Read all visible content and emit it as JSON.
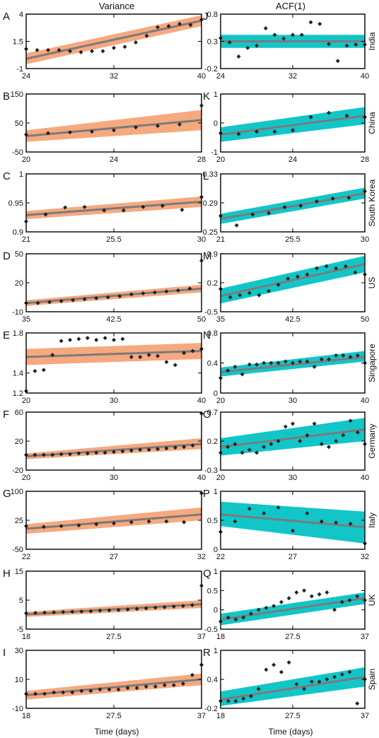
{
  "columns": {
    "left": "Variance",
    "right": "ACF(1)"
  },
  "xlabel": "Time (days)",
  "colors": {
    "variance_band": "#f6a97f",
    "acf_band": "#12c6c8",
    "fit_line": "#7b7b7b",
    "point": "#222222"
  },
  "chart_data": [
    {
      "panel": "A",
      "metric": "Variance",
      "country": "India",
      "type": "scatter",
      "xlim": [
        24,
        40
      ],
      "ylim": [
        -1,
        4
      ],
      "xticks": [
        "24",
        "32",
        "40"
      ],
      "yticks": [
        "-1",
        "1.5",
        "4"
      ],
      "x": [
        24,
        25,
        26,
        27,
        28,
        29,
        30,
        31,
        32,
        33,
        34,
        35,
        36,
        37,
        38,
        39,
        40
      ],
      "y": [
        0.8,
        0.7,
        0.7,
        0.7,
        0.6,
        0.5,
        0.6,
        0.6,
        0.9,
        1.0,
        1.4,
        2.0,
        2.8,
        2.9,
        3.1,
        3.0,
        3.5
      ],
      "fit": [
        [
          24,
          -0.1
        ],
        [
          40,
          3.4
        ]
      ],
      "band": [
        [
          24,
          -0.6,
          0.4
        ],
        [
          40,
          2.9,
          3.9
        ]
      ]
    },
    {
      "panel": "B",
      "metric": "Variance",
      "country": "China",
      "type": "scatter",
      "xlim": [
        20,
        28
      ],
      "ylim": [
        -50,
        150
      ],
      "xticks": [
        "20",
        "24",
        "28"
      ],
      "yticks": [
        "-50",
        "50",
        "150"
      ],
      "x": [
        20,
        21,
        22,
        23,
        24,
        25,
        26,
        27,
        28
      ],
      "y": [
        10,
        15,
        18,
        20,
        25,
        35,
        40,
        45,
        110
      ],
      "fit": [
        [
          20,
          5
        ],
        [
          28,
          60
        ]
      ],
      "band": [
        [
          20,
          -15,
          25
        ],
        [
          28,
          25,
          95
        ]
      ]
    },
    {
      "panel": "C",
      "metric": "Variance",
      "country": "South Korea",
      "type": "scatter",
      "xlim": [
        21,
        30
      ],
      "ylim": [
        0.9,
        1
      ],
      "xticks": [
        "21",
        "25.5",
        "30"
      ],
      "yticks": [
        "0.9",
        "0.95",
        "1"
      ],
      "x": [
        21,
        22,
        23,
        24,
        25,
        26,
        27,
        28,
        29,
        30
      ],
      "y": [
        0.918,
        0.93,
        0.942,
        0.943,
        0.937,
        0.937,
        0.943,
        0.945,
        0.938,
        0.96
      ],
      "fit": [
        [
          21,
          0.929
        ],
        [
          30,
          0.952
        ]
      ],
      "band": [
        [
          21,
          0.922,
          0.936
        ],
        [
          30,
          0.943,
          0.961
        ]
      ]
    },
    {
      "panel": "D",
      "metric": "Variance",
      "country": "US",
      "type": "scatter",
      "xlim": [
        35,
        50
      ],
      "ylim": [
        -10,
        50
      ],
      "xticks": [
        "35",
        "42.5",
        "50"
      ],
      "yticks": [
        "-10",
        "20",
        "50"
      ],
      "x": [
        35,
        36,
        37,
        38,
        39,
        40,
        41,
        42,
        43,
        44,
        45,
        46,
        47,
        48,
        49,
        50
      ],
      "y": [
        -1,
        -1,
        0,
        1,
        2,
        3,
        4,
        5,
        6,
        8,
        9,
        10,
        11,
        12,
        14,
        43
      ],
      "fit": [
        [
          35,
          -1
        ],
        [
          50,
          14
        ]
      ],
      "band": [
        [
          35,
          -4,
          2
        ],
        [
          50,
          10,
          18
        ]
      ]
    },
    {
      "panel": "E",
      "metric": "Variance",
      "country": "Singapore",
      "type": "scatter",
      "xlim": [
        20,
        40
      ],
      "ylim": [
        1.2,
        1.8
      ],
      "xticks": [
        "20",
        "30",
        "40"
      ],
      "yticks": [
        "1.2",
        "1.4",
        "1.8"
      ],
      "x": [
        20,
        21,
        22,
        23,
        24,
        25,
        26,
        27,
        28,
        29,
        30,
        31,
        32,
        33,
        34,
        35,
        36,
        37,
        38,
        39,
        40
      ],
      "y": [
        1.22,
        1.42,
        1.43,
        1.58,
        1.72,
        1.73,
        1.74,
        1.75,
        1.73,
        1.75,
        1.73,
        1.74,
        1.56,
        1.56,
        1.58,
        1.57,
        1.51,
        1.48,
        1.6,
        1.62,
        1.64
      ],
      "fit": [
        [
          20,
          1.56
        ],
        [
          40,
          1.62
        ]
      ],
      "band": [
        [
          20,
          1.48,
          1.64
        ],
        [
          40,
          1.54,
          1.7
        ]
      ]
    },
    {
      "panel": "F",
      "metric": "Variance",
      "country": "Germany",
      "type": "scatter",
      "xlim": [
        20,
        40
      ],
      "ylim": [
        -20,
        60
      ],
      "xticks": [
        "20",
        "30",
        "40"
      ],
      "yticks": [
        "-20",
        "20",
        "60"
      ],
      "x": [
        20,
        21,
        22,
        23,
        24,
        25,
        26,
        27,
        28,
        29,
        30,
        31,
        32,
        33,
        34,
        35,
        36,
        37,
        38,
        39,
        40
      ],
      "y": [
        1,
        1,
        1,
        1,
        2,
        2,
        3,
        3,
        4,
        4,
        5,
        6,
        7,
        8,
        8,
        9,
        10,
        11,
        12,
        14,
        58
      ],
      "fit": [
        [
          20,
          -1
        ],
        [
          40,
          16
        ]
      ],
      "band": [
        [
          20,
          -5,
          3
        ],
        [
          40,
          9,
          24
        ]
      ]
    },
    {
      "panel": "G",
      "metric": "Variance",
      "country": "Italy",
      "type": "scatter",
      "xlim": [
        22,
        32
      ],
      "ylim": [
        -50,
        100
      ],
      "xticks": [
        "22",
        "27",
        "32"
      ],
      "yticks": [
        "-50",
        "25",
        "100"
      ],
      "x": [
        22,
        23,
        24,
        25,
        26,
        27,
        28,
        29,
        30,
        31,
        32
      ],
      "y": [
        10,
        8,
        10,
        12,
        15,
        17,
        20,
        22,
        22,
        20,
        95
      ],
      "fit": [
        [
          22,
          3
        ],
        [
          32,
          40
        ]
      ],
      "band": [
        [
          22,
          -10,
          15
        ],
        [
          32,
          25,
          58
        ]
      ]
    },
    {
      "panel": "H",
      "metric": "Variance",
      "country": "UK",
      "type": "scatter",
      "xlim": [
        18,
        37
      ],
      "ylim": [
        -5,
        15
      ],
      "xticks": [
        "18",
        "27.5",
        "37"
      ],
      "yticks": [
        "-5",
        "5",
        "15"
      ],
      "x": [
        18,
        19,
        20,
        21,
        22,
        23,
        24,
        25,
        26,
        27,
        28,
        29,
        30,
        31,
        32,
        33,
        34,
        35,
        36,
        37
      ],
      "y": [
        0.5,
        0.6,
        0.7,
        0.8,
        0.9,
        1.0,
        1.1,
        1.2,
        1.4,
        1.5,
        1.6,
        1.8,
        2.0,
        2.2,
        2.4,
        2.6,
        2.8,
        3.0,
        3.3,
        10
      ],
      "fit": [
        [
          18,
          0.1
        ],
        [
          37,
          3.6
        ]
      ],
      "band": [
        [
          18,
          -0.8,
          1.0
        ],
        [
          37,
          2.3,
          5.0
        ]
      ]
    },
    {
      "panel": "I",
      "metric": "Variance",
      "country": "Spain",
      "type": "scatter",
      "xlim": [
        18,
        37
      ],
      "ylim": [
        -10,
        30
      ],
      "xticks": [
        "18",
        "27.5",
        "37"
      ],
      "yticks": [
        "-10",
        "10",
        "30"
      ],
      "x": [
        18,
        19,
        20,
        21,
        22,
        23,
        24,
        25,
        26,
        27,
        28,
        29,
        30,
        31,
        32,
        33,
        34,
        35,
        36,
        37
      ],
      "y": [
        0,
        0,
        0,
        1,
        1,
        1,
        2,
        2,
        3,
        3,
        3,
        4,
        4,
        5,
        5,
        6,
        6,
        7,
        13,
        20
      ],
      "fit": [
        [
          18,
          -1
        ],
        [
          37,
          10
        ]
      ],
      "band": [
        [
          18,
          -4,
          2
        ],
        [
          37,
          6,
          14
        ]
      ]
    },
    {
      "panel": "J",
      "metric": "ACF(1)",
      "country": "India",
      "type": "scatter",
      "xlim": [
        24,
        40
      ],
      "ylim": [
        -0.2,
        0.8
      ],
      "xticks": [
        "24",
        "32",
        "40"
      ],
      "yticks": [
        "-0.2",
        "0.3",
        "0.8"
      ],
      "x": [
        24,
        25,
        26,
        27,
        28,
        29,
        30,
        31,
        32,
        33,
        34,
        35,
        36,
        37,
        38,
        39,
        40
      ],
      "y": [
        0.36,
        0.28,
        0.02,
        0.18,
        0.22,
        0.54,
        0.42,
        0.35,
        0.42,
        0.42,
        0.65,
        0.62,
        0.25,
        -0.06,
        0.22,
        0.24,
        0.24
      ],
      "fit": [
        [
          24,
          0.3
        ],
        [
          40,
          0.3
        ]
      ],
      "band": [
        [
          24,
          0.18,
          0.42
        ],
        [
          40,
          0.18,
          0.42
        ]
      ]
    },
    {
      "panel": "K",
      "metric": "ACF(1)",
      "country": "China",
      "type": "scatter",
      "xlim": [
        20,
        28
      ],
      "ylim": [
        -1,
        1
      ],
      "xticks": [
        "20",
        "24",
        "28"
      ],
      "yticks": [
        "-1",
        "0",
        "1"
      ],
      "x": [
        20,
        21,
        22,
        23,
        24,
        25,
        26,
        27,
        28
      ],
      "y": [
        -0.35,
        -0.38,
        -0.3,
        -0.3,
        -0.25,
        0.2,
        0.35,
        0.25,
        0.2
      ],
      "fit": [
        [
          20,
          -0.4
        ],
        [
          28,
          0.25
        ]
      ],
      "band": [
        [
          20,
          -0.65,
          -0.15
        ],
        [
          28,
          -0.05,
          0.55
        ]
      ]
    },
    {
      "panel": "L",
      "metric": "ACF(1)",
      "country": "South Korea",
      "type": "scatter",
      "xlim": [
        21,
        30
      ],
      "ylim": [
        0.25,
        0.33
      ],
      "xticks": [
        "21",
        "25.5",
        "30"
      ],
      "yticks": [
        "0.25",
        "0.29",
        "0.33"
      ],
      "x": [
        21,
        22,
        23,
        24,
        25,
        26,
        27,
        28,
        29,
        30
      ],
      "y": [
        0.272,
        0.259,
        0.274,
        0.276,
        0.284,
        0.286,
        0.292,
        0.296,
        0.297,
        0.306
      ],
      "fit": [
        [
          21,
          0.268
        ],
        [
          30,
          0.303
        ]
      ],
      "band": [
        [
          21,
          0.261,
          0.275
        ],
        [
          30,
          0.296,
          0.311
        ]
      ]
    },
    {
      "panel": "M",
      "metric": "ACF(1)",
      "country": "US",
      "type": "scatter",
      "xlim": [
        35,
        50
      ],
      "ylim": [
        -0.5,
        0.9
      ],
      "xticks": [
        "35",
        "42.5",
        "50"
      ],
      "yticks": [
        "-0.5",
        "0.2",
        "0.9"
      ],
      "x": [
        35,
        36,
        37,
        38,
        39,
        40,
        41,
        42,
        43,
        44,
        45,
        46,
        47,
        48,
        49,
        50
      ],
      "y": [
        0.05,
        -0.15,
        -0.1,
        -0.05,
        -0.1,
        0.0,
        0.15,
        0.3,
        0.35,
        0.4,
        0.55,
        0.6,
        0.55,
        0.6,
        0.45,
        0.4
      ],
      "fit": [
        [
          35,
          -0.12
        ],
        [
          50,
          0.65
        ]
      ],
      "band": [
        [
          35,
          -0.3,
          0.06
        ],
        [
          50,
          0.45,
          0.85
        ]
      ]
    },
    {
      "panel": "N",
      "metric": "ACF(1)",
      "country": "Singapore",
      "type": "scatter",
      "xlim": [
        20,
        40
      ],
      "ylim": [
        0,
        0.8
      ],
      "xticks": [
        "20",
        "30",
        "40"
      ],
      "yticks": [
        "0",
        "0.4",
        "0.8"
      ],
      "x": [
        20,
        21,
        22,
        23,
        24,
        25,
        26,
        27,
        28,
        29,
        30,
        31,
        32,
        33,
        34,
        35,
        36,
        37,
        38,
        39,
        40
      ],
      "y": [
        0.2,
        0.3,
        0.35,
        0.25,
        0.38,
        0.38,
        0.4,
        0.4,
        0.4,
        0.42,
        0.4,
        0.42,
        0.42,
        0.35,
        0.45,
        0.45,
        0.5,
        0.5,
        0.48,
        0.5,
        0.4
      ],
      "fit": [
        [
          20,
          0.28
        ],
        [
          40,
          0.48
        ]
      ],
      "band": [
        [
          20,
          0.22,
          0.34
        ],
        [
          40,
          0.42,
          0.56
        ]
      ]
    },
    {
      "panel": "O",
      "metric": "ACF(1)",
      "country": "Germany",
      "type": "scatter",
      "xlim": [
        20,
        40
      ],
      "ylim": [
        -0.3,
        0.7
      ],
      "xticks": [
        "20",
        "30",
        "40"
      ],
      "yticks": [
        "-0.3",
        "0.2",
        "0.7"
      ],
      "x": [
        20,
        21,
        22,
        23,
        24,
        25,
        26,
        27,
        28,
        29,
        30,
        31,
        32,
        33,
        34,
        35,
        36,
        37,
        38,
        39,
        40
      ],
      "y": [
        0.0,
        0.1,
        0.15,
        0.0,
        0.05,
        0.0,
        0.1,
        0.15,
        0.2,
        0.45,
        0.5,
        0.2,
        0.3,
        0.5,
        0.15,
        0.1,
        0.2,
        0.3,
        0.55,
        0.35,
        0.15
      ],
      "fit": [
        [
          20,
          0.1
        ],
        [
          40,
          0.4
        ]
      ],
      "band": [
        [
          20,
          -0.05,
          0.25
        ],
        [
          40,
          0.2,
          0.6
        ]
      ]
    },
    {
      "panel": "P",
      "metric": "ACF(1)",
      "country": "Italy",
      "type": "scatter",
      "xlim": [
        22,
        32
      ],
      "ylim": [
        0,
        1
      ],
      "xticks": [
        "22",
        "27",
        "32"
      ],
      "yticks": [
        "0",
        "0.5",
        "1"
      ],
      "x": [
        22,
        23,
        24,
        25,
        26,
        27,
        28,
        29,
        30,
        31,
        32
      ],
      "y": [
        0.3,
        0.48,
        0.7,
        0.62,
        0.72,
        0.32,
        0.62,
        0.48,
        0.46,
        0.44,
        0.1
      ],
      "fit": [
        [
          22,
          0.6
        ],
        [
          32,
          0.38
        ]
      ],
      "band": [
        [
          22,
          0.4,
          0.82
        ],
        [
          32,
          0.1,
          0.65
        ]
      ]
    },
    {
      "panel": "Q",
      "metric": "ACF(1)",
      "country": "UK",
      "type": "scatter",
      "xlim": [
        18,
        37
      ],
      "ylim": [
        -0.5,
        1
      ],
      "xticks": [
        "18",
        "27.5",
        "37"
      ],
      "yticks": [
        "-0.5",
        "0",
        "0.5",
        "1"
      ],
      "x": [
        18,
        19,
        20,
        21,
        22,
        23,
        24,
        25,
        26,
        27,
        28,
        29,
        30,
        31,
        32,
        33,
        34,
        35,
        36,
        37
      ],
      "y": [
        -0.3,
        -0.2,
        -0.25,
        -0.2,
        -0.1,
        0.0,
        0.05,
        0.1,
        0.2,
        0.3,
        0.45,
        0.5,
        0.35,
        0.4,
        0.45,
        0.0,
        0.2,
        0.25,
        0.35,
        0.25
      ],
      "fit": [
        [
          18,
          -0.25
        ],
        [
          37,
          0.3
        ]
      ],
      "band": [
        [
          18,
          -0.4,
          -0.1
        ],
        [
          37,
          0.15,
          0.45
        ]
      ]
    },
    {
      "panel": "R",
      "metric": "ACF(1)",
      "country": "Spain",
      "type": "scatter",
      "xlim": [
        18,
        37
      ],
      "ylim": [
        -0.2,
        1
      ],
      "xticks": [
        "18",
        "27.5",
        "37"
      ],
      "yticks": [
        "-0.2",
        "0.4",
        "1"
      ],
      "x": [
        18,
        19,
        20,
        21,
        22,
        23,
        24,
        25,
        26,
        27,
        28,
        29,
        30,
        31,
        32,
        33,
        34,
        35,
        36,
        37
      ],
      "y": [
        -0.05,
        -0.05,
        -0.05,
        0.0,
        0.05,
        0.2,
        0.6,
        0.7,
        0.55,
        0.75,
        0.3,
        0.2,
        0.35,
        0.35,
        0.4,
        0.45,
        0.5,
        0.55,
        -0.1,
        0.4
      ],
      "fit": [
        [
          18,
          -0.02
        ],
        [
          37,
          0.45
        ]
      ],
      "band": [
        [
          18,
          -0.15,
          0.15
        ],
        [
          37,
          0.25,
          0.65
        ]
      ]
    }
  ]
}
